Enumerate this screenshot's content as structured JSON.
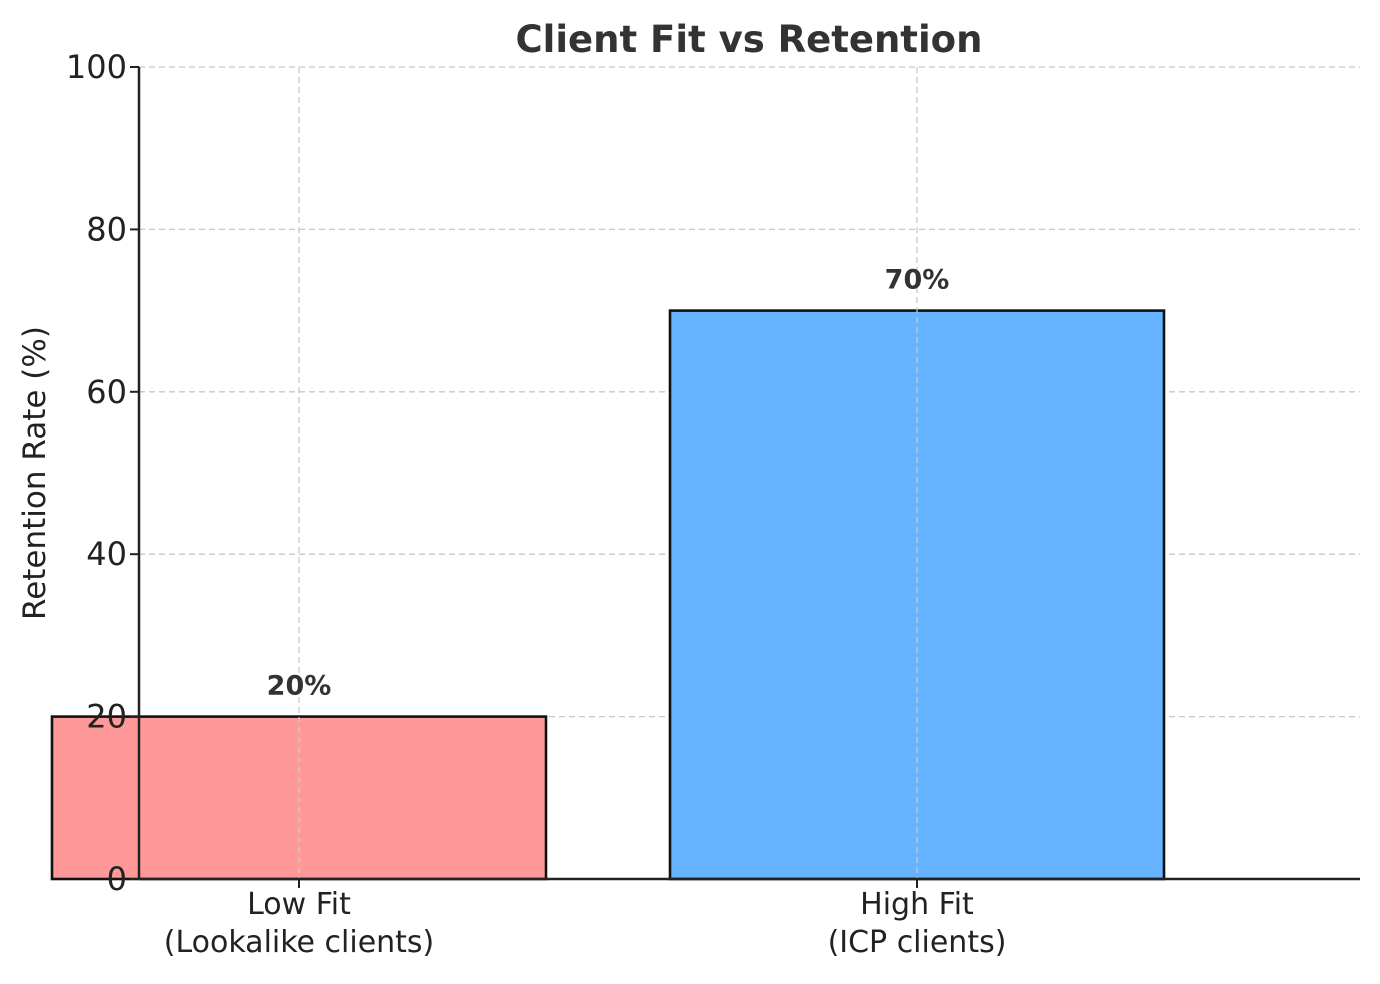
{
  "chart_data": {
    "type": "bar",
    "title": "Client Fit vs Retention",
    "xlabel": "",
    "ylabel": "Retention Rate (%)",
    "ylim": [
      0,
      100
    ],
    "yticks": [
      0,
      20,
      40,
      60,
      80,
      100
    ],
    "grid": true,
    "categories": [
      [
        "Low Fit",
        "(Lookalike clients)"
      ],
      [
        "High Fit",
        "(ICP clients)"
      ]
    ],
    "values": [
      20,
      70
    ],
    "value_labels": [
      "20%",
      "70%"
    ],
    "colors": [
      "#ff9999",
      "#66b3ff"
    ]
  }
}
